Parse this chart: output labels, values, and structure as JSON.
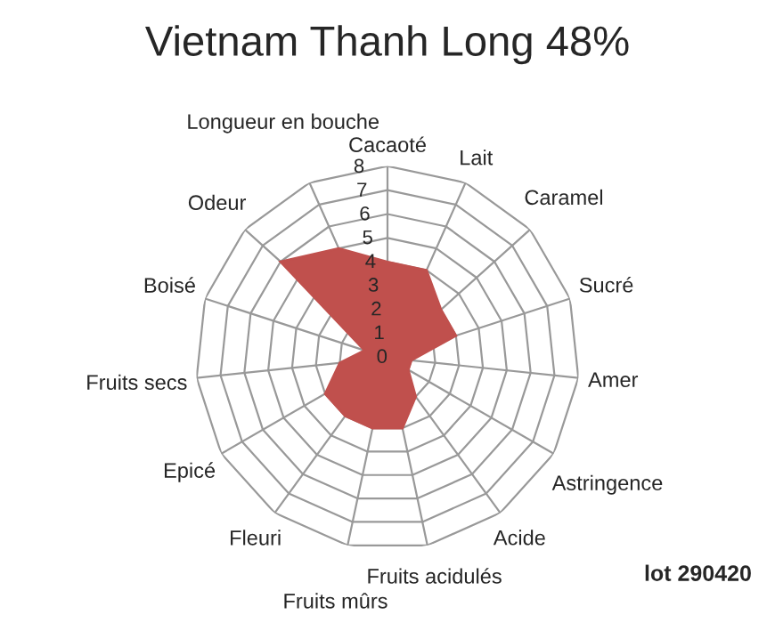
{
  "chart_data": {
    "type": "radar",
    "title": "Vietnam Thanh Long 48%",
    "categories": [
      "Cacaoté",
      "Lait",
      "Caramel",
      "Sucré",
      "Amer",
      "Astringence",
      "Acide",
      "Fruits acidulés",
      "Fruits mûrs",
      "Fleuri",
      "Epicé",
      "Fruits secs",
      "Boisé",
      "Odeur",
      "Longueur en bouche"
    ],
    "series": [
      {
        "color": "#c0504d",
        "values": [
          4,
          4,
          3,
          3,
          1,
          1,
          2,
          3,
          3,
          3,
          3,
          2,
          1,
          6,
          5
        ]
      }
    ],
    "ylim": [
      0,
      8
    ],
    "yticks": [
      0,
      1,
      2,
      3,
      4,
      5,
      6,
      7,
      8
    ],
    "annotations": [
      "lot 290420"
    ]
  }
}
